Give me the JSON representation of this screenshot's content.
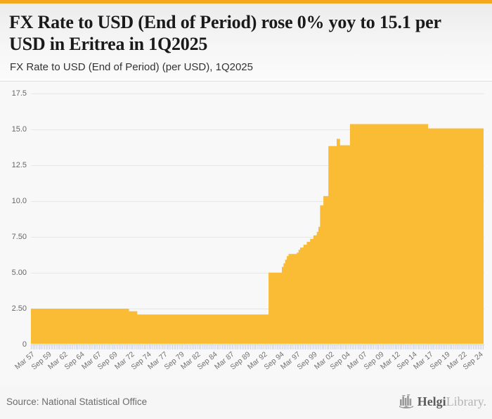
{
  "header": {
    "accent_color": "#F5A81E",
    "title": "FX Rate to USD (End of Period) rose 0% yoy to 15.1 per USD in Eritrea in 1Q2025",
    "subtitle": "FX Rate to USD (End of Period) (per USD), 1Q2025"
  },
  "chart_data": {
    "type": "area",
    "title": "FX Rate to USD (End of Period) rose 0% yoy to 15.1 per USD in Eritrea in 1Q2025",
    "subtitle": "FX Rate to USD (End of Period) (per USD), 1Q2025",
    "series_name": "FX Rate to USD (End of Period), per USD, Eritrea",
    "color": "#F9BC34",
    "grid": true,
    "legend": false,
    "ylim": [
      0,
      18.1
    ],
    "x_start": "1957Q1",
    "x_end": "2025Q1",
    "latest_value": 15.1,
    "y_ticks": {
      "labels": [
        "17.5",
        "15.0",
        "12.5",
        "10.0",
        "7.50",
        "5.00",
        "2.50",
        "0"
      ],
      "values": [
        17.5,
        15,
        12.5,
        10,
        7.5,
        5,
        2.5,
        0
      ]
    },
    "x_ticks": {
      "labels": [
        "Mar 57",
        "Sep 59",
        "Mar 62",
        "Sep 64",
        "Mar 67",
        "Sep 69",
        "Mar 72",
        "Sep 74",
        "Mar 77",
        "Sep 79",
        "Mar 82",
        "Sep 84",
        "Mar 87",
        "Sep 89",
        "Mar 92",
        "Sep 94",
        "Mar 97",
        "Sep 99",
        "Mar 02",
        "Sep 04",
        "Mar 07",
        "Sep 09",
        "Mar 12",
        "Sep 14",
        "Mar 17",
        "Sep 19",
        "Mar 22",
        "Sep 24"
      ],
      "quarters_per_tick": 10
    },
    "segments": [
      {
        "from": "1957Q1",
        "to": "1971Q3",
        "value": 2.48
      },
      {
        "from": "1971Q4",
        "to": "1972Q4",
        "value": 2.3
      },
      {
        "from": "1973Q1",
        "to": "1992Q3",
        "value": 2.07
      },
      {
        "from": "1992Q4",
        "to": "1994Q3",
        "value": 5.0
      },
      {
        "from": "1994Q4",
        "to": "1994Q4",
        "value": 5.4
      },
      {
        "from": "1995Q1",
        "to": "1995Q1",
        "value": 5.65
      },
      {
        "from": "1995Q2",
        "to": "1995Q2",
        "value": 5.9
      },
      {
        "from": "1995Q3",
        "to": "1995Q3",
        "value": 6.15
      },
      {
        "from": "1995Q4",
        "to": "1996Q4",
        "value": 6.3
      },
      {
        "from": "1997Q1",
        "to": "1997Q1",
        "value": 6.4
      },
      {
        "from": "1997Q2",
        "to": "1997Q2",
        "value": 6.6
      },
      {
        "from": "1997Q3",
        "to": "1997Q4",
        "value": 6.75
      },
      {
        "from": "1998Q1",
        "to": "1998Q2",
        "value": 6.95
      },
      {
        "from": "1998Q3",
        "to": "1998Q4",
        "value": 7.15
      },
      {
        "from": "1999Q1",
        "to": "1999Q2",
        "value": 7.35
      },
      {
        "from": "1999Q3",
        "to": "1999Q4",
        "value": 7.6
      },
      {
        "from": "2000Q1",
        "to": "2000Q1",
        "value": 7.85
      },
      {
        "from": "2000Q2",
        "to": "2000Q2",
        "value": 8.2
      },
      {
        "from": "2000Q3",
        "to": "2000Q4",
        "value": 9.7
      },
      {
        "from": "2001Q1",
        "to": "2001Q3",
        "value": 10.35
      },
      {
        "from": "2001Q4",
        "to": "2002Q4",
        "value": 13.85
      },
      {
        "from": "2003Q1",
        "to": "2003Q2",
        "value": 14.35
      },
      {
        "from": "2003Q3",
        "to": "2004Q4",
        "value": 13.9
      },
      {
        "from": "2005Q1",
        "to": "2016Q3",
        "value": 15.38
      },
      {
        "from": "2016Q4",
        "to": "2025Q1",
        "value": 15.08
      }
    ]
  },
  "footer": {
    "source": "Source: National Statistical Office",
    "logo_bold": "Helgi",
    "logo_light": "Library."
  }
}
